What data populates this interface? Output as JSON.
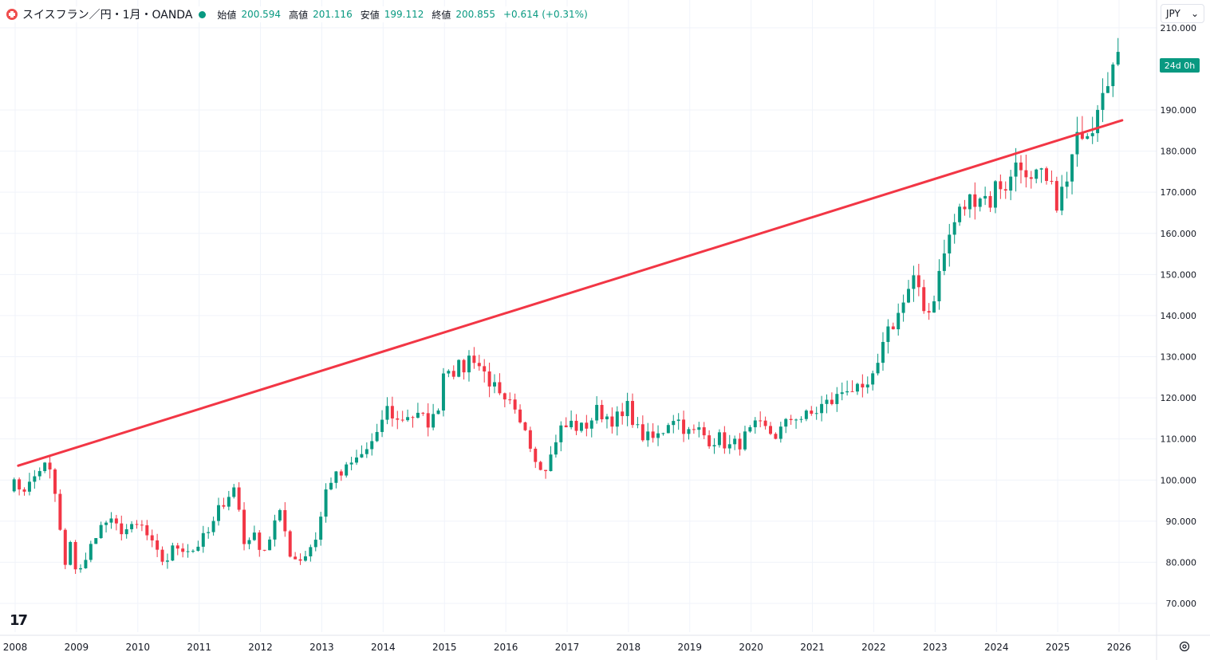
{
  "header": {
    "title": "スイスフラン／円・1月・OANDA",
    "open_label": "始値",
    "open": "200.594",
    "high_label": "高値",
    "high": "201.116",
    "low_label": "安値",
    "low": "199.112",
    "close_label": "終値",
    "close": "200.855",
    "change": "+0.614 (+0.31%)"
  },
  "currency_selector": {
    "value": "JPY",
    "icon": "chevron-down-icon"
  },
  "countdown_badge": "24d 0h",
  "colors": {
    "up": "#089981",
    "down": "#f23645",
    "trendline": "#f23645",
    "grid": "#f0f3fa"
  },
  "chart_data": {
    "type": "candlestick",
    "title": "スイスフラン／円・1月・OANDA",
    "y_axis": {
      "ticks": [
        "70.000",
        "80.000",
        "90.000",
        "100.000",
        "110.000",
        "120.000",
        "130.000",
        "140.000",
        "150.000",
        "160.000",
        "170.000",
        "180.000",
        "190.000",
        "210.000"
      ],
      "range": [
        66,
        211
      ]
    },
    "x_axis": {
      "ticks": [
        "2008",
        "2009",
        "2010",
        "2011",
        "2012",
        "2013",
        "2014",
        "2015",
        "2016",
        "2017",
        "2018",
        "2019",
        "2020",
        "2021",
        "2022",
        "2023",
        "2024",
        "2025",
        "2026"
      ],
      "range": [
        2008.0,
        2026.6
      ]
    },
    "last_price_label": "24d 0h",
    "anchors": [
      [
        2007.9,
        99
      ],
      [
        2008.2,
        98
      ],
      [
        2008.45,
        104
      ],
      [
        2008.6,
        101
      ],
      [
        2008.7,
        92
      ],
      [
        2008.8,
        78
      ],
      [
        2008.9,
        84
      ],
      [
        2009.0,
        78
      ],
      [
        2009.15,
        80
      ],
      [
        2009.3,
        87
      ],
      [
        2009.5,
        90
      ],
      [
        2009.7,
        88
      ],
      [
        2009.9,
        88
      ],
      [
        2010.05,
        89
      ],
      [
        2010.2,
        85
      ],
      [
        2010.35,
        81
      ],
      [
        2010.45,
        80
      ],
      [
        2010.6,
        84
      ],
      [
        2010.9,
        83
      ],
      [
        2011.2,
        88
      ],
      [
        2011.35,
        94
      ],
      [
        2011.55,
        98
      ],
      [
        2011.62,
        98
      ],
      [
        2011.7,
        84
      ],
      [
        2011.85,
        87
      ],
      [
        2012.0,
        84
      ],
      [
        2012.1,
        83
      ],
      [
        2012.2,
        89
      ],
      [
        2012.35,
        92
      ],
      [
        2012.45,
        83
      ],
      [
        2012.55,
        81
      ],
      [
        2012.7,
        81
      ],
      [
        2012.9,
        86
      ],
      [
        2013.0,
        92
      ],
      [
        2013.1,
        100
      ],
      [
        2013.3,
        101
      ],
      [
        2013.5,
        104
      ],
      [
        2013.7,
        107
      ],
      [
        2013.9,
        110
      ],
      [
        2013.98,
        115
      ],
      [
        2014.1,
        118
      ],
      [
        2014.2,
        114
      ],
      [
        2014.4,
        116
      ],
      [
        2014.6,
        115
      ],
      [
        2014.8,
        114
      ],
      [
        2014.95,
        121
      ],
      [
        2015.0,
        129
      ],
      [
        2015.15,
        127
      ],
      [
        2015.3,
        127
      ],
      [
        2015.45,
        131
      ],
      [
        2015.6,
        127
      ],
      [
        2015.75,
        124
      ],
      [
        2015.95,
        118
      ],
      [
        2016.1,
        118
      ],
      [
        2016.2,
        113
      ],
      [
        2016.35,
        113
      ],
      [
        2016.45,
        106
      ],
      [
        2016.55,
        104
      ],
      [
        2016.7,
        104
      ],
      [
        2016.85,
        112
      ],
      [
        2017.0,
        113
      ],
      [
        2017.1,
        114
      ],
      [
        2017.2,
        112
      ],
      [
        2017.35,
        114
      ],
      [
        2017.5,
        117
      ],
      [
        2017.7,
        115
      ],
      [
        2017.9,
        115
      ],
      [
        2018.0,
        118
      ],
      [
        2018.15,
        112
      ],
      [
        2018.3,
        110
      ],
      [
        2018.45,
        110
      ],
      [
        2018.6,
        113
      ],
      [
        2018.7,
        116
      ],
      [
        2018.85,
        114
      ],
      [
        2019.0,
        111
      ],
      [
        2019.15,
        112
      ],
      [
        2019.3,
        110
      ],
      [
        2019.5,
        110
      ],
      [
        2019.65,
        108
      ],
      [
        2019.8,
        109
      ],
      [
        2019.95,
        111
      ],
      [
        2020.1,
        113
      ],
      [
        2020.25,
        112
      ],
      [
        2020.4,
        111
      ],
      [
        2020.55,
        113
      ],
      [
        2020.7,
        116
      ],
      [
        2020.85,
        115
      ],
      [
        2021.0,
        116
      ],
      [
        2021.15,
        118
      ],
      [
        2021.3,
        119
      ],
      [
        2021.4,
        120
      ],
      [
        2021.55,
        123
      ],
      [
        2021.7,
        122
      ],
      [
        2021.8,
        120
      ],
      [
        2021.95,
        124
      ],
      [
        2022.05,
        125
      ],
      [
        2022.15,
        135
      ],
      [
        2022.3,
        138
      ],
      [
        2022.45,
        142
      ],
      [
        2022.6,
        146
      ],
      [
        2022.7,
        149
      ],
      [
        2022.8,
        143
      ],
      [
        2022.9,
        141
      ],
      [
        2023.0,
        146
      ],
      [
        2023.2,
        158
      ],
      [
        2023.35,
        164
      ],
      [
        2023.5,
        167
      ],
      [
        2023.7,
        170
      ],
      [
        2023.9,
        168
      ],
      [
        2024.0,
        172
      ],
      [
        2024.15,
        172
      ],
      [
        2024.25,
        173
      ],
      [
        2024.35,
        180
      ],
      [
        2024.45,
        176
      ],
      [
        2024.5,
        170
      ],
      [
        2024.7,
        174
      ],
      [
        2024.85,
        171
      ],
      [
        2025.0,
        168
      ],
      [
        2025.15,
        172
      ],
      [
        2025.25,
        179
      ],
      [
        2025.4,
        186
      ],
      [
        2025.55,
        186
      ],
      [
        2025.7,
        196
      ],
      [
        2025.8,
        199
      ],
      [
        2025.95,
        201
      ]
    ],
    "trendline": {
      "start": [
        2008.05,
        103.5
      ],
      "end": [
        2026.05,
        187.5
      ],
      "color": "#f23645"
    }
  }
}
